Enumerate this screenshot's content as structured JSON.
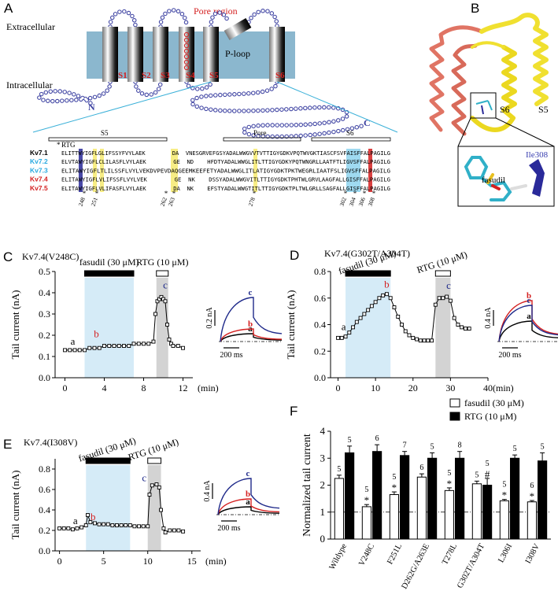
{
  "panel_a": {
    "label": "A",
    "extracellular": "Extracellular",
    "intracellular": "Intracellular",
    "pore_region": "Pore region",
    "segments": [
      "S1",
      "S2",
      "S3",
      "S4",
      "S5",
      "S6"
    ],
    "p_loop": "P-loop",
    "n_term": "N",
    "c_term": "C",
    "regions": [
      "S5",
      "Pore",
      "S6"
    ],
    "marker": "RTG",
    "alignment": [
      {
        "name": "Kv7.1",
        "color": "#000000",
        "sequence": "ELITTWYIGFLGLIFSSYFVYLAEK        DA  VNESGRVEFGSYADALWWGVVTVTTIGYGDKVPQTWVGKTIASCFSVFAISFFALPAGILG"
      },
      {
        "name": "Kv7.2",
        "color": "#29a9e0",
        "sequence": "ELVTAWYIGFLCLILASFLVYLAEK        GE  ND    HFDTYADALWWGLITLTTIGYGDKYPQTWNGRLLAATFTLIGVSFFALPAGILG"
      },
      {
        "name": "Kv7.3",
        "color": "#29a9e0",
        "sequence": "ELITAWYIGFLTLILSSFLVYLVEKDVPEVDAQGEEMKEEFETYADALWWGLITLATIGYGDKTPKTWEGRLIAATFSLIGVSFFALPAGILG"
      },
      {
        "name": "Kv7.4",
        "color": "#d42020",
        "sequence": "ELITAWYIGFLVLIFSSFLVYLVEK        GE  NK    DSSYADALWWGVITLTTIGYGDKTPHTWLGRVLAAGFALLGISFFALPAGILG"
      },
      {
        "name": "Kv7.5",
        "color": "#d42020",
        "sequence": "ELITAWYIGFLVLIFASFLVYLAEK        DA  NK    EFSTYADALWWGTITLTTIGYGDKTPLTWLGRLLSAGFALLGISFFALPAGILG"
      }
    ],
    "positions": [
      248,
      251,
      262,
      263,
      278,
      302,
      304,
      306,
      308
    ]
  },
  "panel_b": {
    "label": "B",
    "s6": "S6",
    "s5": "S5",
    "ligand": "fasudil",
    "residue": "Ile308"
  },
  "chart_data": [
    {
      "type": "line",
      "panel": "C",
      "title": "Kv7.4(V248C)",
      "ylabel": "Tail current (nA)",
      "xlabel": "(min)",
      "color": "#000000",
      "x": [
        0,
        0.5,
        1,
        1.5,
        2,
        2.5,
        3,
        3.5,
        4,
        4.5,
        5,
        5.5,
        6,
        6.5,
        7,
        7.5,
        8,
        8.5,
        9,
        9.2,
        9.4,
        9.6,
        9.8,
        10,
        10.2,
        10.4,
        10.6,
        10.8,
        11,
        11.5,
        12
      ],
      "values": [
        0.13,
        0.13,
        0.13,
        0.13,
        0.13,
        0.14,
        0.14,
        0.14,
        0.15,
        0.15,
        0.15,
        0.15,
        0.15,
        0.15,
        0.16,
        0.16,
        0.16,
        0.16,
        0.17,
        0.3,
        0.36,
        0.37,
        0.38,
        0.37,
        0.36,
        0.25,
        0.18,
        0.16,
        0.15,
        0.15,
        0.14
      ],
      "xlim": [
        -1,
        13
      ],
      "xticks": [
        0,
        4,
        8,
        12
      ],
      "ylim": [
        0,
        0.5
      ],
      "yticks": [
        {
          "value": 0,
          "label": "0.0"
        },
        0.1,
        0.2,
        0.3,
        0.4,
        0.5
      ],
      "treatments": [
        {
          "label": "fasudil (30 μM)",
          "start": 2,
          "end": 7,
          "bar_color": "#000000",
          "shade_color": "#d5ebf7"
        },
        {
          "label": "RTG (10 μM)",
          "start": 9.3,
          "end": 10.5,
          "bar_color": "#ffffff",
          "shade_color": "#d3d3d3"
        }
      ],
      "point_labels": [
        {
          "label": "a",
          "x": 0.8,
          "y": 0.155,
          "color": "#000000"
        },
        {
          "label": "b",
          "x": 3.2,
          "y": 0.19,
          "color": "#d42020"
        },
        {
          "label": "c",
          "x": 10.2,
          "y": 0.42,
          "color": "#1f2a8a"
        }
      ],
      "inset": {
        "y_scale": "0.2 nA",
        "x_scale": "200 ms",
        "traces": [
          {
            "label": "a",
            "color": "#000000"
          },
          {
            "label": "b",
            "color": "#d42020"
          },
          {
            "label": "c",
            "color": "#1f2a8a"
          }
        ]
      }
    },
    {
      "type": "line",
      "panel": "D",
      "title": "Kv7.4(G302T/A304T)",
      "ylabel": "Tail current (nA)",
      "xlabel": "(min)",
      "color": "#000000",
      "x": [
        0,
        1,
        2,
        3,
        4,
        5,
        6,
        7,
        8,
        9,
        10,
        11,
        12,
        13,
        14,
        15,
        16,
        17,
        18,
        19,
        20,
        21,
        22,
        23,
        24,
        25,
        26,
        27,
        28,
        29,
        30,
        31,
        32,
        33,
        34,
        35
      ],
      "values": [
        0.3,
        0.3,
        0.31,
        0.34,
        0.38,
        0.42,
        0.45,
        0.48,
        0.51,
        0.54,
        0.57,
        0.6,
        0.62,
        0.63,
        0.6,
        0.53,
        0.46,
        0.4,
        0.35,
        0.32,
        0.3,
        0.29,
        0.28,
        0.28,
        0.28,
        0.28,
        0.55,
        0.6,
        0.6,
        0.61,
        0.58,
        0.45,
        0.4,
        0.38,
        0.37,
        0.37
      ],
      "xlim": [
        -2,
        40
      ],
      "xticks": [
        0,
        10,
        20,
        30,
        40
      ],
      "ylim": [
        0,
        0.8
      ],
      "yticks": [
        {
          "value": 0,
          "label": "0.0"
        },
        0.2,
        0.4,
        0.6,
        0.8
      ],
      "treatments": [
        {
          "label": "fasudil (30 μM)",
          "start": 2,
          "end": 14,
          "bar_color": "#000000",
          "shade_color": "#d5ebf7"
        },
        {
          "label": "RTG (10 μM)",
          "start": 26,
          "end": 30,
          "bar_color": "#ffffff",
          "shade_color": "#d3d3d3"
        }
      ],
      "point_labels": [
        {
          "label": "a",
          "x": 1.5,
          "y": 0.36,
          "color": "#000000"
        },
        {
          "label": "b",
          "x": 13,
          "y": 0.68,
          "color": "#d42020"
        },
        {
          "label": "c",
          "x": 29.5,
          "y": 0.67,
          "color": "#1f2a8a"
        }
      ],
      "inset": {
        "y_scale": "0.4 nA",
        "x_scale": "200 ms",
        "traces": [
          {
            "label": "a",
            "color": "#000000"
          },
          {
            "label": "b",
            "color": "#d42020"
          },
          {
            "label": "c",
            "color": "#1f2a8a"
          }
        ]
      }
    },
    {
      "type": "line",
      "panel": "E",
      "title": "Kv7.4(I308V)",
      "ylabel": "Tail current (nA)",
      "xlabel": "(min)",
      "color": "#000000",
      "x": [
        0,
        0.5,
        1,
        1.5,
        2,
        2.5,
        3,
        3.2,
        3.5,
        4,
        4.5,
        5,
        5.5,
        6,
        6.5,
        7,
        7.5,
        8,
        8.5,
        9,
        9.5,
        10,
        10.2,
        10.5,
        11,
        11.3,
        11.5,
        11.8,
        12,
        12.5,
        13,
        13.5,
        14
      ],
      "values": [
        0.22,
        0.22,
        0.22,
        0.21,
        0.22,
        0.23,
        0.25,
        0.35,
        0.28,
        0.27,
        0.26,
        0.26,
        0.26,
        0.25,
        0.25,
        0.25,
        0.25,
        0.25,
        0.24,
        0.24,
        0.24,
        0.24,
        0.55,
        0.64,
        0.65,
        0.62,
        0.4,
        0.22,
        0.18,
        0.2,
        0.2,
        0.2,
        0.19
      ],
      "xlim": [
        -0.5,
        16
      ],
      "xticks": [
        0,
        5,
        10,
        15
      ],
      "ylim": [
        0,
        0.9
      ],
      "yticks": [
        {
          "value": 0,
          "label": "0.0"
        },
        0.2,
        0.4,
        0.6,
        0.8
      ],
      "treatments": [
        {
          "label": "fasudil (30 μM)",
          "start": 3,
          "end": 8,
          "bar_color": "#000000",
          "shade_color": "#d5ebf7"
        },
        {
          "label": "RTG (10 μM)",
          "start": 10,
          "end": 11.5,
          "bar_color": "#ffffff",
          "shade_color": "#d3d3d3"
        }
      ],
      "point_labels": [
        {
          "label": "a",
          "x": 1.8,
          "y": 0.26,
          "color": "#000000"
        },
        {
          "label": "b",
          "x": 3.8,
          "y": 0.3,
          "color": "#d42020"
        },
        {
          "label": "c",
          "x": 9.6,
          "y": 0.68,
          "color": "#1f2a8a"
        }
      ],
      "inset": {
        "y_scale": "0.4 nA",
        "x_scale": "200 ms",
        "traces": [
          {
            "label": "a",
            "color": "#000000"
          },
          {
            "label": "b",
            "color": "#d42020"
          },
          {
            "label": "c",
            "color": "#1f2a8a"
          }
        ]
      }
    },
    {
      "type": "bar",
      "panel": "F",
      "ylabel": "Normalized tail current",
      "categories": [
        "Wildype",
        "V248C",
        "F251L",
        "D262G/A263E",
        "T278L",
        "G302T/A304T",
        "L306I",
        "I308V"
      ],
      "series": [
        {
          "name": "fasudil (30 μM)",
          "color": "#ffffff",
          "values": [
            2.25,
            1.2,
            1.65,
            2.3,
            1.8,
            2.05,
            1.42,
            1.38
          ],
          "errors": [
            0.12,
            0.08,
            0.1,
            0.12,
            0.1,
            0.1,
            0.05,
            0.05
          ],
          "n": [
            5,
            5,
            5,
            6,
            5,
            5,
            5,
            6
          ],
          "significance": [
            null,
            "*",
            "*",
            null,
            "*",
            null,
            "*",
            "*"
          ]
        },
        {
          "name": "RTG (10 μM)",
          "color": "#000000",
          "values": [
            3.2,
            3.25,
            3.1,
            3.0,
            3.0,
            2.0,
            3.0,
            2.9
          ],
          "errors": [
            0.25,
            0.25,
            0.15,
            0.2,
            0.25,
            0.25,
            0.12,
            0.3
          ],
          "n": [
            5,
            6,
            7,
            5,
            8,
            5,
            5,
            5
          ],
          "significance": [
            null,
            null,
            null,
            null,
            null,
            "#",
            null,
            null
          ]
        }
      ],
      "ylim": [
        0,
        4
      ],
      "yticks": [
        0,
        1,
        2,
        3,
        4
      ],
      "reference_line": 1,
      "legend": "top-right"
    }
  ]
}
